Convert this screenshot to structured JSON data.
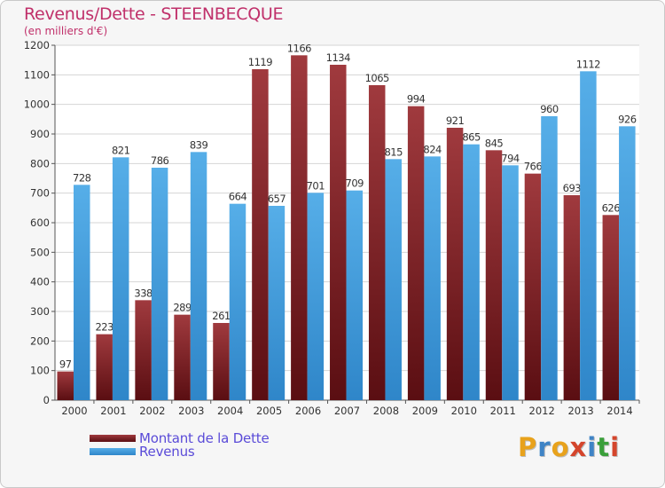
{
  "chart_data": {
    "type": "bar",
    "title": "Revenus/Dette - STEENBECQUE",
    "subtitle": "(en milliers d'€)",
    "categories": [
      "2000",
      "2001",
      "2002",
      "2003",
      "2004",
      "2005",
      "2006",
      "2007",
      "2008",
      "2009",
      "2010",
      "2011",
      "2012",
      "2013",
      "2014"
    ],
    "series": [
      {
        "name": "Montant de la Dette",
        "color": "#7b1f24",
        "values": [
          97,
          223,
          338,
          289,
          261,
          1119,
          1166,
          1134,
          1065,
          994,
          921,
          845,
          766,
          693,
          626
        ]
      },
      {
        "name": "Revenus",
        "color": "#3c97dc",
        "values": [
          728,
          821,
          786,
          839,
          664,
          657,
          701,
          709,
          815,
          824,
          865,
          794,
          960,
          1112,
          926
        ]
      }
    ],
    "ylim": [
      0,
      1200
    ],
    "yticks": [
      0,
      100,
      200,
      300,
      400,
      500,
      600,
      700,
      800,
      900,
      1000,
      1100,
      1200
    ],
    "grid": true,
    "legend_position": "bottom-left"
  },
  "logo": {
    "letters": [
      "P",
      "r",
      "o",
      "x",
      "i",
      "t",
      "i"
    ],
    "colors": [
      "#e8a21c",
      "#3f84c6",
      "#e8a21c",
      "#d4452c",
      "#3f84c6",
      "#3a9f3a",
      "#d4452c"
    ]
  }
}
